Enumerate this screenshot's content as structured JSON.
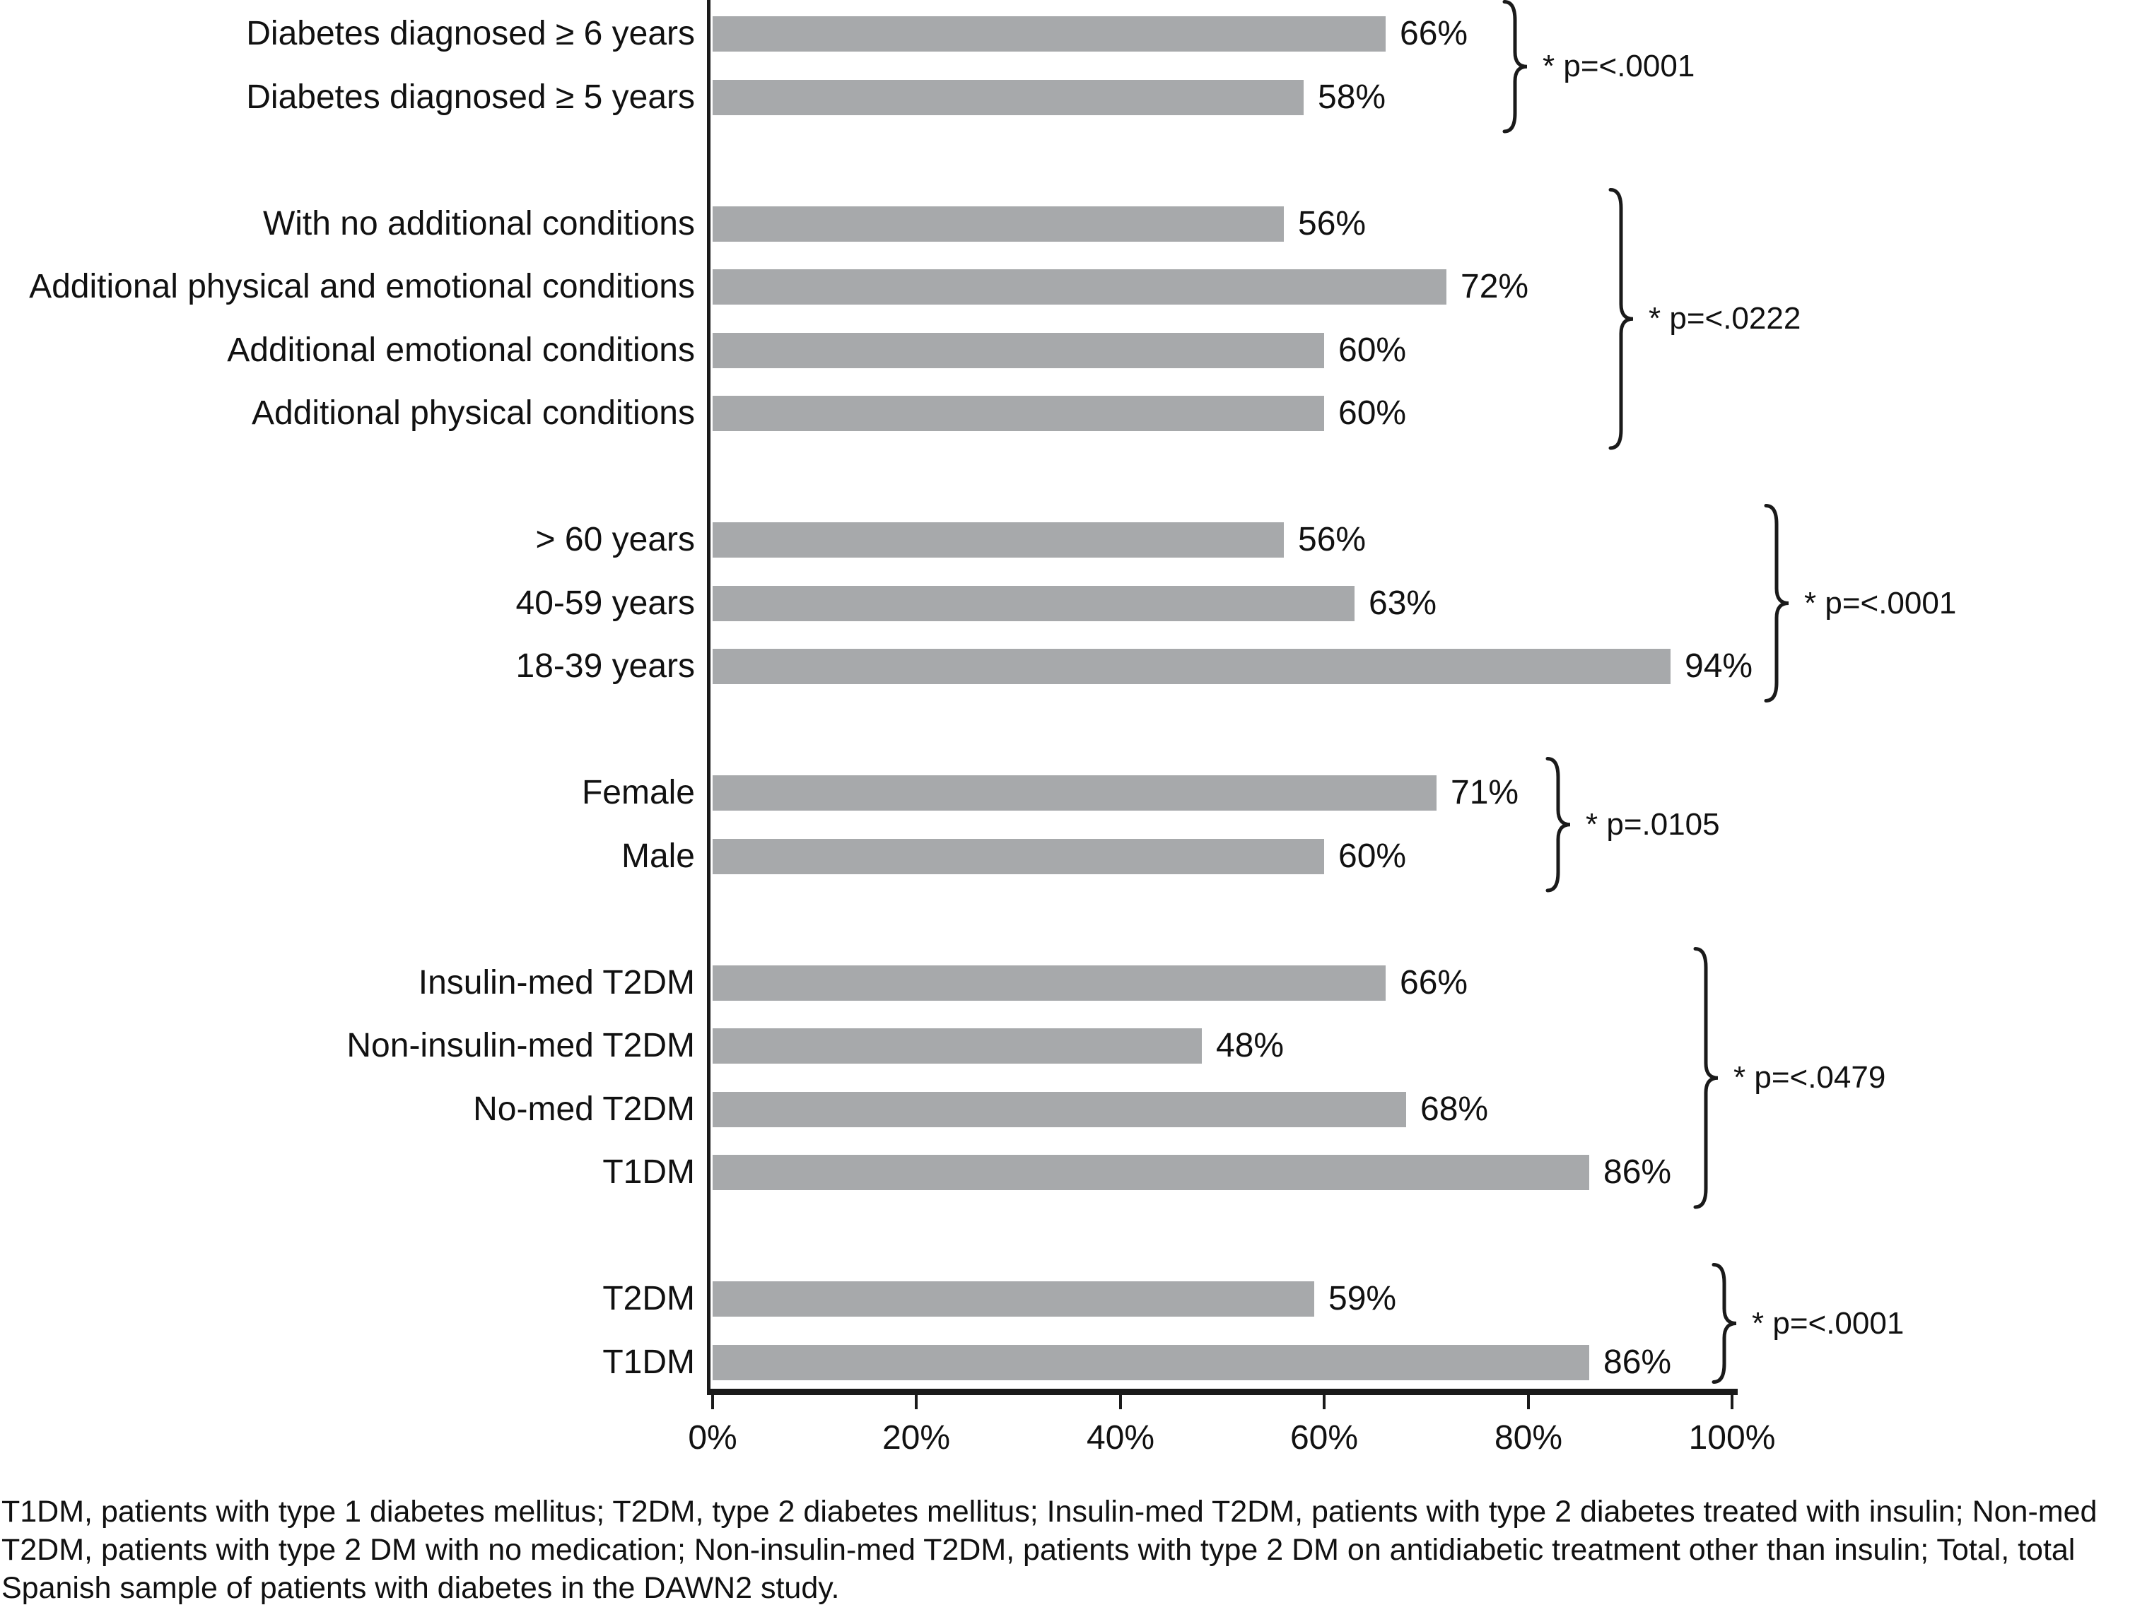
{
  "chart_data": {
    "type": "bar",
    "orientation": "horizontal",
    "title": "",
    "xlabel": "",
    "ylabel": "",
    "xlim": [
      0,
      100
    ],
    "x_ticks": [
      "0%",
      "20%",
      "40%",
      "60%",
      "80%",
      "100%"
    ],
    "grid": false,
    "bar_color": "#a7a9ab",
    "groups": [
      {
        "p_label": "* p=<.0001",
        "bars": [
          {
            "label": "Diabetes diagnosed ≥ 6 years",
            "value": 66,
            "value_label": "66%"
          },
          {
            "label": "Diabetes diagnosed ≥ 5 years",
            "value": 58,
            "value_label": "58%"
          }
        ]
      },
      {
        "p_label": "* p=<.0222",
        "bars": [
          {
            "label": "With no additional conditions",
            "value": 56,
            "value_label": "56%"
          },
          {
            "label": "Additional physical and emotional conditions",
            "value": 72,
            "value_label": "72%"
          },
          {
            "label": "Additional emotional conditions",
            "value": 60,
            "value_label": "60%"
          },
          {
            "label": "Additional physical conditions",
            "value": 60,
            "value_label": "60%"
          }
        ]
      },
      {
        "p_label": "* p=<.0001",
        "bars": [
          {
            "label": "> 60 years",
            "value": 56,
            "value_label": "56%"
          },
          {
            "label": "40-59 years",
            "value": 63,
            "value_label": "63%"
          },
          {
            "label": "18-39 years",
            "value": 94,
            "value_label": "94%"
          }
        ]
      },
      {
        "p_label": "* p=.0105",
        "bars": [
          {
            "label": "Female",
            "value": 71,
            "value_label": "71%"
          },
          {
            "label": "Male",
            "value": 60,
            "value_label": "60%"
          }
        ]
      },
      {
        "p_label": "* p=<.0479",
        "bars": [
          {
            "label": "Insulin-med T2DM",
            "value": 66,
            "value_label": "66%"
          },
          {
            "label": "Non-insulin-med T2DM",
            "value": 48,
            "value_label": "48%"
          },
          {
            "label": "No-med T2DM",
            "value": 68,
            "value_label": "68%"
          },
          {
            "label": "T1DM",
            "value": 86,
            "value_label": "86%"
          }
        ]
      },
      {
        "p_label": "* p=<.0001",
        "bars": [
          {
            "label": "T2DM",
            "value": 59,
            "value_label": "59%"
          },
          {
            "label": "T1DM",
            "value": 86,
            "value_label": "86%"
          }
        ]
      }
    ],
    "footnote": "T1DM, patients with type 1 diabetes mellitus; T2DM, type 2 diabetes mellitus; Insulin-med T2DM, patients with type 2 diabetes treated with insulin; Non-med T2DM, patients with type 2 DM with no medication; Non-insulin-med T2DM, patients with type 2 DM on antidiabetic treatment other than insulin; Total, total Spanish sample of patients with diabetes in the DAWN2 study."
  }
}
